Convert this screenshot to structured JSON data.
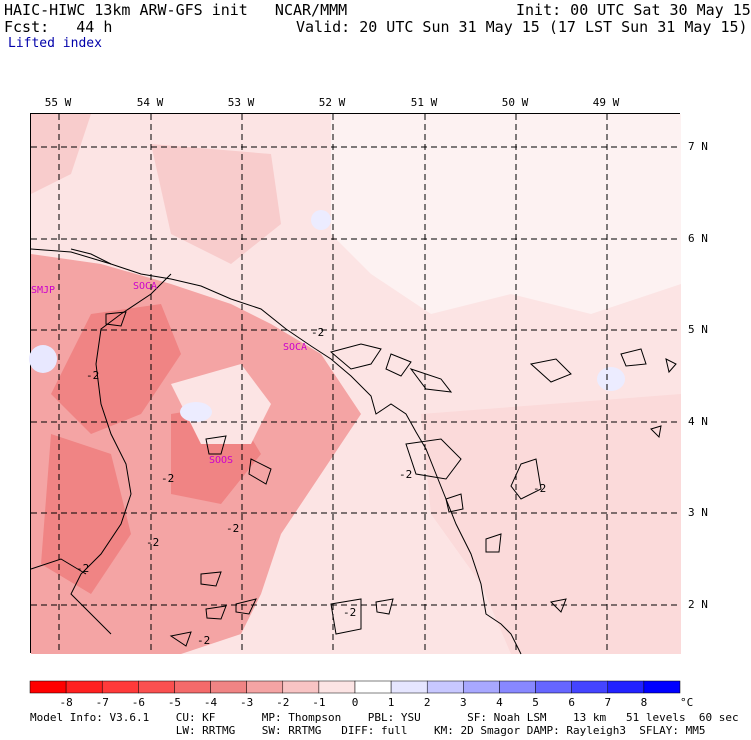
{
  "header": {
    "title_line": "HAIC-HIWC 13km ARW-GFS init   NCAR/MMM",
    "init": "Init: 00 UTC Sat 30 May 15",
    "fcst": "Fcst:   44 h",
    "valid": "Valid: 20 UTC Sun 31 May 15 (17 LST Sun 31 May 15)",
    "field": "Lifted index"
  },
  "map": {
    "longitude_labels": [
      "55 W",
      "54 W",
      "53 W",
      "52 W",
      "51 W",
      "50 W",
      "49 W"
    ],
    "latitude_labels": [
      "7 N",
      "6 N",
      "5 N",
      "4 N",
      "3 N",
      "2 N"
    ],
    "stations": [
      "SMJP",
      "SOCA",
      "SOCA",
      "SOOS"
    ],
    "contour_labels": [
      "-2",
      "-2",
      "-2",
      "-2",
      "-2",
      "-2",
      "-2",
      "-2",
      "-2",
      "-2"
    ]
  },
  "colorbar": {
    "ticks": [
      "-8",
      "-7",
      "-6",
      "-5",
      "-4",
      "-3",
      "-2",
      "-1",
      "0",
      "1",
      "2",
      "3",
      "4",
      "5",
      "6",
      "7",
      "8"
    ],
    "unit": "°C",
    "colors": [
      "#ff0000",
      "#ff2020",
      "#ff3a3a",
      "#fa5050",
      "#f46a6a",
      "#f08484",
      "#f4a4a4",
      "#f8c4c4",
      "#fce4e4",
      "#ffffff",
      "#e6e6ff",
      "#c8c8ff",
      "#a8a8ff",
      "#8888ff",
      "#6666ff",
      "#4444ff",
      "#2222ff",
      "#0000ff"
    ]
  },
  "footer": {
    "line1": "Model Info: V3.6.1    CU: KF       MP: Thompson    PBL: YSU       SF: Noah LSM    13 km   51 levels  60 sec",
    "line2": "                      LW: RRTMG    SW: RRTMG   DIFF: full    KM: 2D Smagor DAMP: Rayleigh3  SFLAY: MM5"
  }
}
